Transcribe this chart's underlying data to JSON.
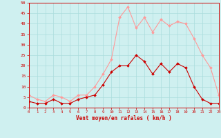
{
  "hours": [
    0,
    1,
    2,
    3,
    4,
    5,
    6,
    7,
    8,
    9,
    10,
    11,
    12,
    13,
    14,
    15,
    16,
    17,
    18,
    19,
    20,
    21,
    22,
    23
  ],
  "wind_avg": [
    3,
    2,
    2,
    4,
    2,
    2,
    4,
    5,
    6,
    11,
    17,
    20,
    20,
    25,
    22,
    16,
    21,
    17,
    21,
    19,
    10,
    4,
    2,
    2
  ],
  "wind_gust": [
    6,
    4,
    3,
    6,
    5,
    3,
    6,
    6,
    10,
    16,
    23,
    43,
    48,
    38,
    43,
    36,
    42,
    39,
    41,
    40,
    33,
    25,
    19,
    6
  ],
  "xlabel": "Vent moyen/en rafales ( km/h )",
  "ylim": [
    0,
    50
  ],
  "yticks": [
    0,
    5,
    10,
    15,
    20,
    25,
    30,
    35,
    40,
    45,
    50
  ],
  "bg_color": "#cff0f0",
  "grid_color": "#aadddd",
  "line_color_avg": "#cc0000",
  "line_color_gust": "#ff9999",
  "marker_size": 2.0,
  "line_width": 0.8
}
